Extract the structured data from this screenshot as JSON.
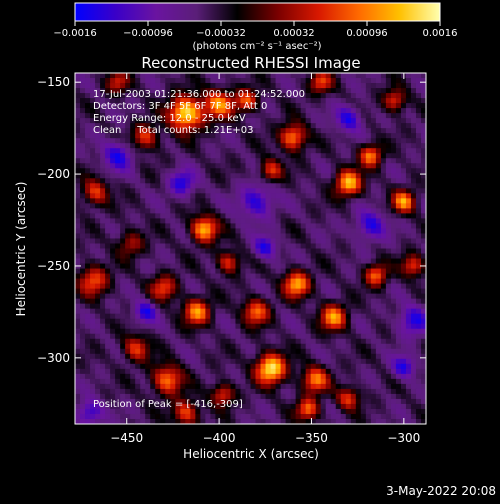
{
  "chart_data": {
    "type": "heatmap",
    "title": "Reconstructed RHESSI Image",
    "xlabel": "Heliocentric X (arcsec)",
    "ylabel": "Heliocentric Y (arcsec)",
    "xlim": [
      -478,
      -288
    ],
    "ylim": [
      -336,
      -145
    ],
    "xticks": [
      -450,
      -400,
      -350,
      -300
    ],
    "yticks": [
      -150,
      -200,
      -250,
      -300
    ],
    "xtick_labels": [
      "−450",
      "−400",
      "−350",
      "−300"
    ],
    "ytick_labels": [
      "−150",
      "−200",
      "−250",
      "−300"
    ],
    "colorbar": {
      "range": [
        -0.0016,
        0.0016
      ],
      "ticks": [
        -0.0016,
        -0.00096,
        -0.00032,
        0.00032,
        0.00096,
        0.0016
      ],
      "tick_labels": [
        "−0.0016",
        "−0.00096",
        "−0.00032",
        "0.00032",
        "0.00096",
        "0.0016"
      ],
      "unit_label": "(photons cm⁻² s⁻¹ asec⁻²)",
      "colormap": [
        "#0000ff",
        "#3a00c8",
        "#6a14a0",
        "#5a1e78",
        "#000000",
        "#7a0000",
        "#d81800",
        "#ff6a00",
        "#ffc000",
        "#ffffb0"
      ]
    },
    "info_lines": [
      "17-Jul-2003 01:21:36.000 to 01:24:52.000",
      "Detectors: 3F 4F 5F 6F 7F 8F, Att 0",
      "Energy Range: 12.0 - 25.0 keV",
      "Clean     Total counts: 1.21E+03"
    ],
    "peak_label": "Position of Peak = [-416,-309]",
    "peak_position": [
      -416,
      -309
    ],
    "grid": false
  },
  "footer": {
    "date": "3-May-2022 20:08"
  }
}
